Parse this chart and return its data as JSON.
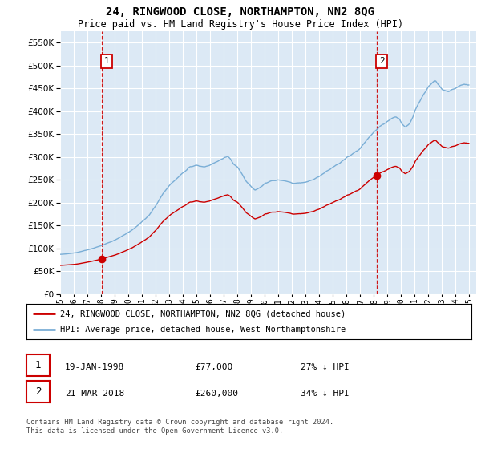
{
  "title": "24, RINGWOOD CLOSE, NORTHAMPTON, NN2 8QG",
  "subtitle": "Price paid vs. HM Land Registry's House Price Index (HPI)",
  "legend_line1": "24, RINGWOOD CLOSE, NORTHAMPTON, NN2 8QG (detached house)",
  "legend_line2": "HPI: Average price, detached house, West Northamptonshire",
  "sale1_date": "19-JAN-1998",
  "sale1_price": 77000,
  "sale1_label": "27% ↓ HPI",
  "sale2_date": "21-MAR-2018",
  "sale2_price": 260000,
  "sale2_label": "34% ↓ HPI",
  "footer": "Contains HM Land Registry data © Crown copyright and database right 2024.\nThis data is licensed under the Open Government Licence v3.0.",
  "bg_color": "#dce9f5",
  "white": "#ffffff",
  "red_color": "#cc0000",
  "blue_color": "#7aaed6",
  "grid_color": "#ffffff",
  "sale1_x": 1998.05,
  "sale2_x": 2018.22,
  "ylim_max": 575000,
  "xlim_start": 1995.25,
  "xlim_end": 2025.5
}
